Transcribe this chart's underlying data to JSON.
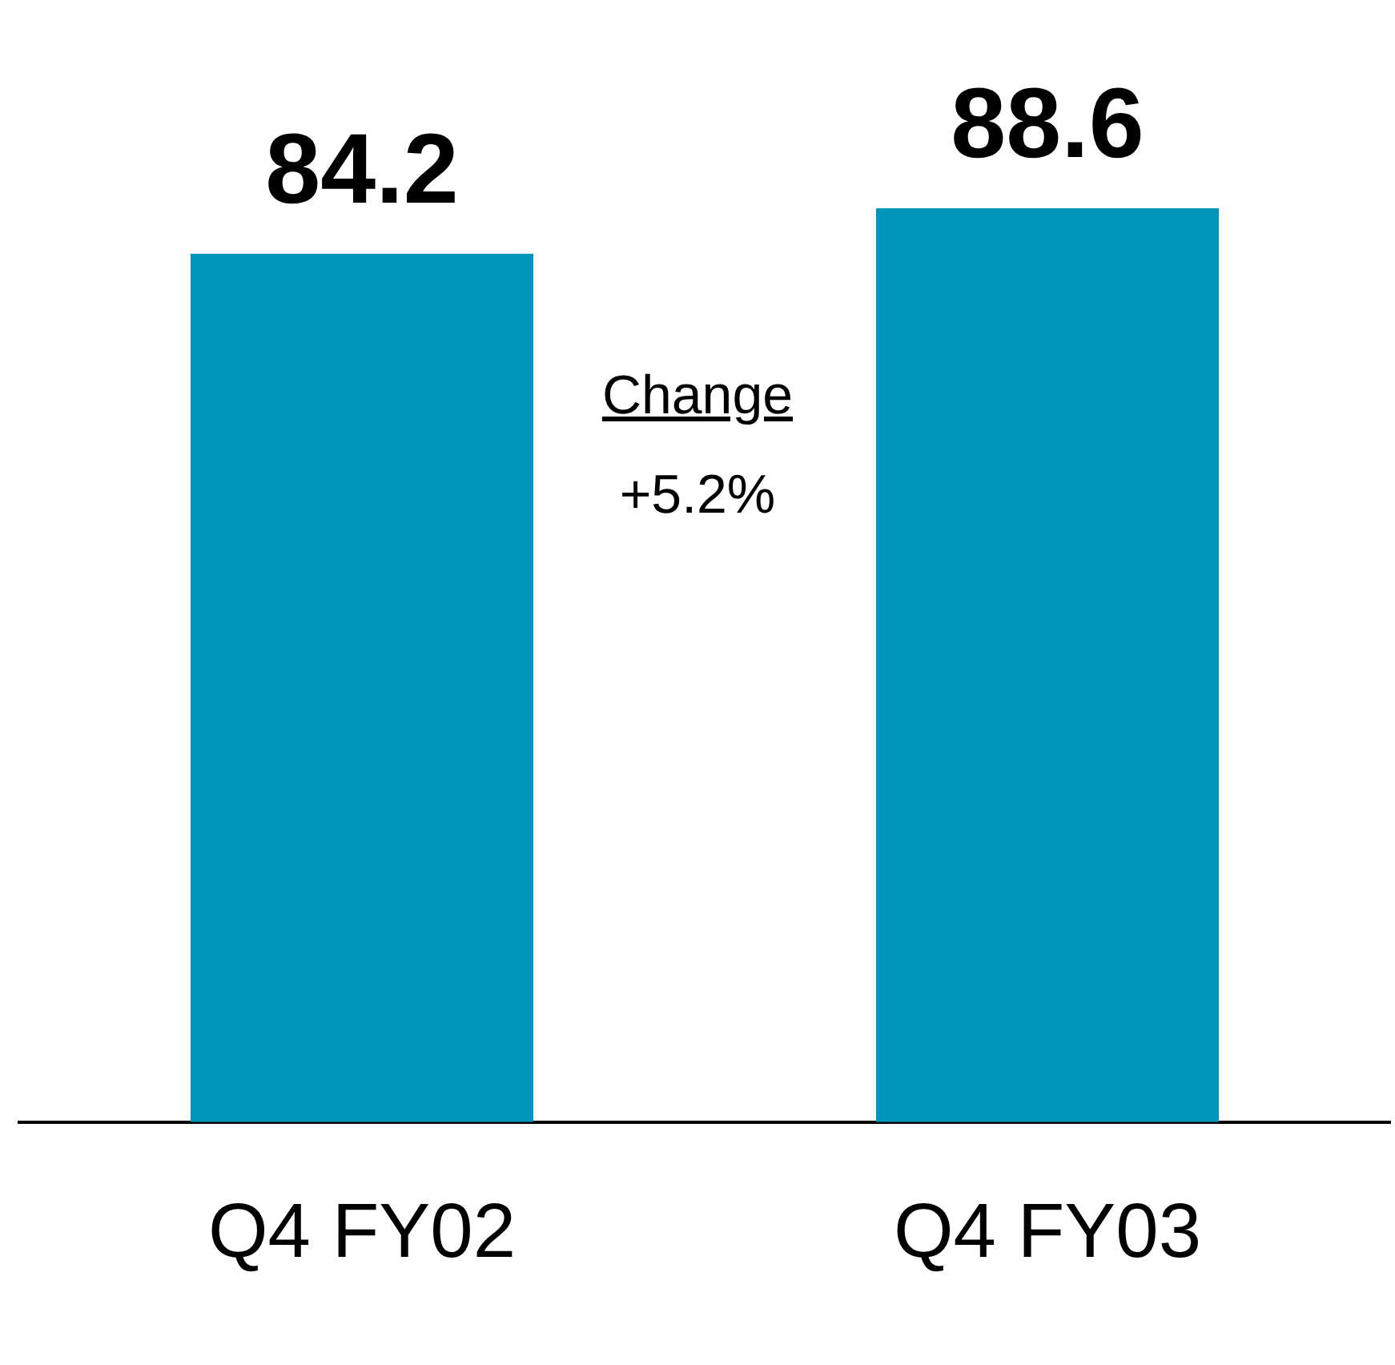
{
  "chart_data": {
    "type": "bar",
    "categories": [
      "Q4 FY02",
      "Q4 FY03"
    ],
    "values": [
      84.2,
      88.6
    ],
    "color": "#0096bb",
    "data_labels": true,
    "tick_labels": "x",
    "legend": false,
    "annotations": [
      "Change",
      "+5.2%"
    ]
  }
}
